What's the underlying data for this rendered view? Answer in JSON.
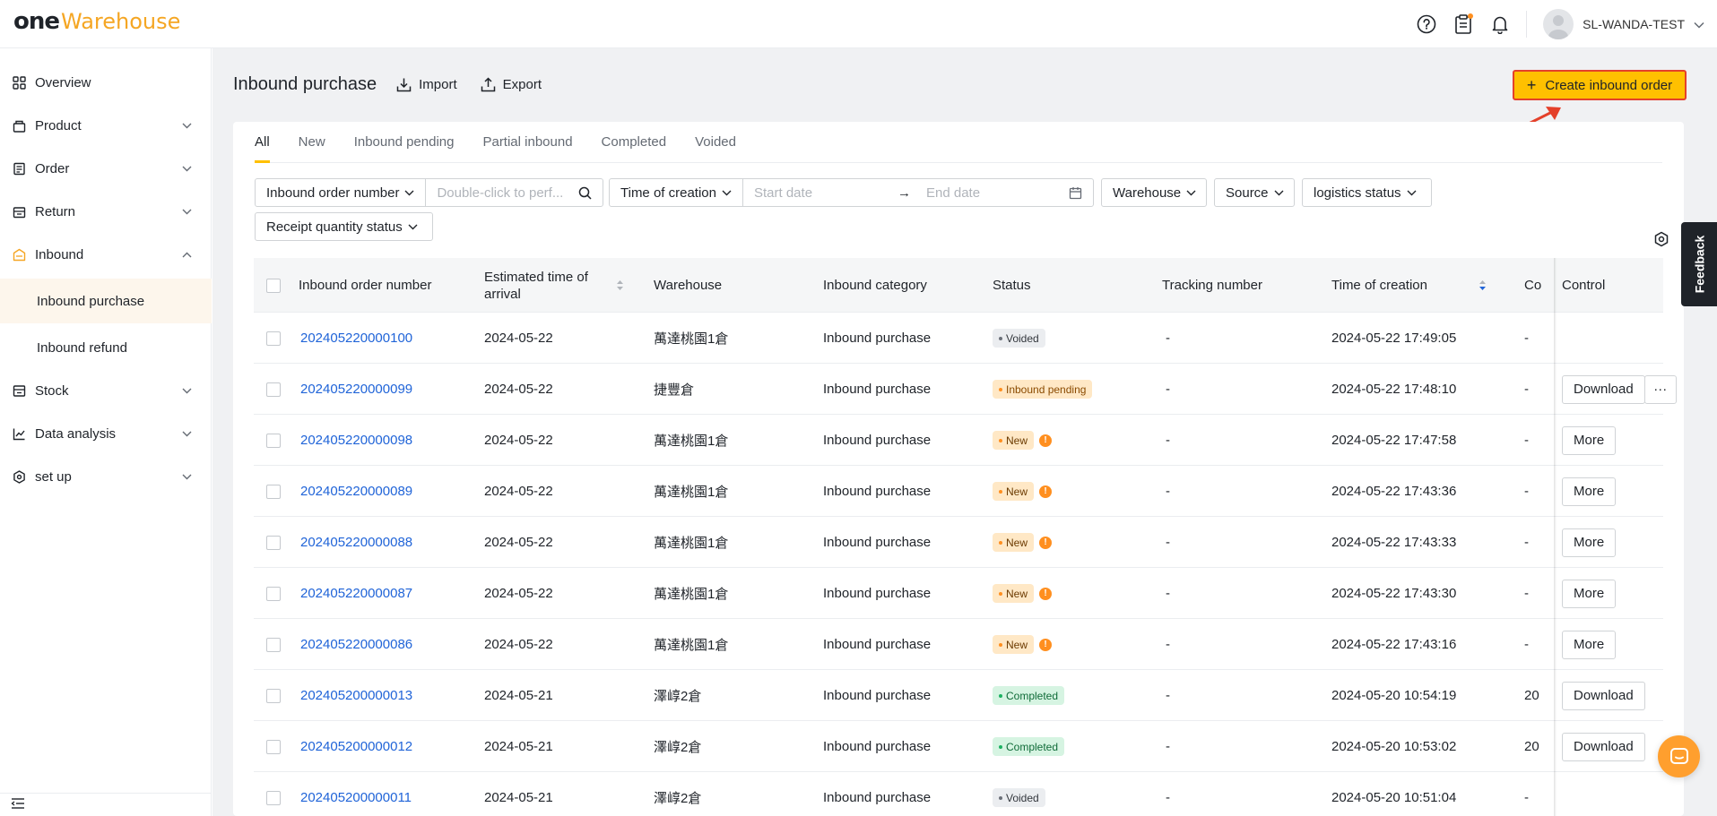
{
  "brand": {
    "one": "one",
    "warehouse": "Warehouse"
  },
  "header": {
    "user_name": "SL-WANDA-TEST",
    "icons": [
      "help-circle-icon",
      "clipboard-icon",
      "bell-icon",
      "avatar",
      "chevron-down-icon"
    ]
  },
  "sidebar": {
    "items": [
      {
        "label": "Overview",
        "icon": "grid-icon",
        "chevron": ""
      },
      {
        "label": "Product",
        "icon": "box-icon",
        "chevron": "down"
      },
      {
        "label": "Order",
        "icon": "order-icon",
        "chevron": "down"
      },
      {
        "label": "Return",
        "icon": "return-icon",
        "chevron": "down"
      },
      {
        "label": "Inbound",
        "icon": "inbound-icon",
        "chevron": "up"
      },
      {
        "label": "Stock",
        "icon": "stock-icon",
        "chevron": "down"
      },
      {
        "label": "Data analysis",
        "icon": "chart-icon",
        "chevron": "down"
      },
      {
        "label": "set up",
        "icon": "settings-icon",
        "chevron": "down"
      }
    ],
    "sub_items": [
      {
        "label": "Inbound purchase",
        "active": true
      },
      {
        "label": "Inbound refund",
        "active": false
      }
    ]
  },
  "page": {
    "title": "Inbound purchase",
    "import_label": "Import",
    "export_label": "Export",
    "create_label": "Create inbound order"
  },
  "tabs": [
    "All",
    "New",
    "Inbound pending",
    "Partial inbound",
    "Completed",
    "Voided"
  ],
  "active_tab": "All",
  "filters": {
    "order_number_select": "Inbound order number",
    "order_number_placeholder": "Double-click to perf...",
    "time_select": "Time of creation",
    "start_date_placeholder": "Start date",
    "end_date_placeholder": "End date",
    "date_arrow": "→",
    "warehouse": "Warehouse",
    "source": "Source",
    "logistics_status": "logistics status",
    "receipt_quantity_status": "Receipt quantity status"
  },
  "table": {
    "columns": {
      "order_number": "Inbound order number",
      "eta": "Estimated time of arrival",
      "warehouse": "Warehouse",
      "category": "Inbound category",
      "status": "Status",
      "tracking": "Tracking number",
      "created": "Time of creation",
      "cut": "Co",
      "control": "Control"
    },
    "rows": [
      {
        "order": "202405220000100",
        "eta": "2024-05-22",
        "warehouse": "萬達桃園1倉",
        "category": "Inbound purchase",
        "status": "Voided",
        "status_kind": "voided",
        "warn": "",
        "tracking": "-",
        "created": "2024-05-22 17:49:05",
        "cut": "-",
        "action": "",
        "action2": ""
      },
      {
        "order": "202405220000099",
        "eta": "2024-05-22",
        "warehouse": "捷豐倉",
        "category": "Inbound purchase",
        "status": "Inbound pending",
        "status_kind": "pending",
        "warn": "",
        "tracking": "-",
        "created": "2024-05-22 17:48:10",
        "cut": "-",
        "action": "Download",
        "action2": "···"
      },
      {
        "order": "202405220000098",
        "eta": "2024-05-22",
        "warehouse": "萬達桃園1倉",
        "category": "Inbound purchase",
        "status": "New",
        "status_kind": "new",
        "warn": "!",
        "tracking": "-",
        "created": "2024-05-22 17:47:58",
        "cut": "-",
        "action": "More",
        "action2": ""
      },
      {
        "order": "202405220000089",
        "eta": "2024-05-22",
        "warehouse": "萬達桃園1倉",
        "category": "Inbound purchase",
        "status": "New",
        "status_kind": "new",
        "warn": "!",
        "tracking": "-",
        "created": "2024-05-22 17:43:36",
        "cut": "-",
        "action": "More",
        "action2": ""
      },
      {
        "order": "202405220000088",
        "eta": "2024-05-22",
        "warehouse": "萬達桃園1倉",
        "category": "Inbound purchase",
        "status": "New",
        "status_kind": "new",
        "warn": "!",
        "tracking": "-",
        "created": "2024-05-22 17:43:33",
        "cut": "-",
        "action": "More",
        "action2": ""
      },
      {
        "order": "202405220000087",
        "eta": "2024-05-22",
        "warehouse": "萬達桃園1倉",
        "category": "Inbound purchase",
        "status": "New",
        "status_kind": "new",
        "warn": "!",
        "tracking": "-",
        "created": "2024-05-22 17:43:30",
        "cut": "-",
        "action": "More",
        "action2": ""
      },
      {
        "order": "202405220000086",
        "eta": "2024-05-22",
        "warehouse": "萬達桃園1倉",
        "category": "Inbound purchase",
        "status": "New",
        "status_kind": "new",
        "warn": "!",
        "tracking": "-",
        "created": "2024-05-22 17:43:16",
        "cut": "-",
        "action": "More",
        "action2": ""
      },
      {
        "order": "202405200000013",
        "eta": "2024-05-21",
        "warehouse": "澤崞2倉",
        "category": "Inbound purchase",
        "status": "Completed",
        "status_kind": "completed",
        "warn": "",
        "tracking": "-",
        "created": "2024-05-20 10:54:19",
        "cut": "20",
        "action": "Download",
        "action2": ""
      },
      {
        "order": "202405200000012",
        "eta": "2024-05-21",
        "warehouse": "澤崞2倉",
        "category": "Inbound purchase",
        "status": "Completed",
        "status_kind": "completed",
        "warn": "",
        "tracking": "-",
        "created": "2024-05-20 10:53:02",
        "cut": "20",
        "action": "Download",
        "action2": ""
      },
      {
        "order": "202405200000011",
        "eta": "2024-05-21",
        "warehouse": "澤崞2倉",
        "category": "Inbound purchase",
        "status": "Voided",
        "status_kind": "voided",
        "warn": "",
        "tracking": "-",
        "created": "2024-05-20 10:51:04",
        "cut": "-",
        "action": "",
        "action2": ""
      }
    ]
  },
  "feedback_label": "Feedback",
  "colors": {
    "accent": "#ffc000",
    "link": "#2064d8",
    "annotation": "#e4402a"
  }
}
